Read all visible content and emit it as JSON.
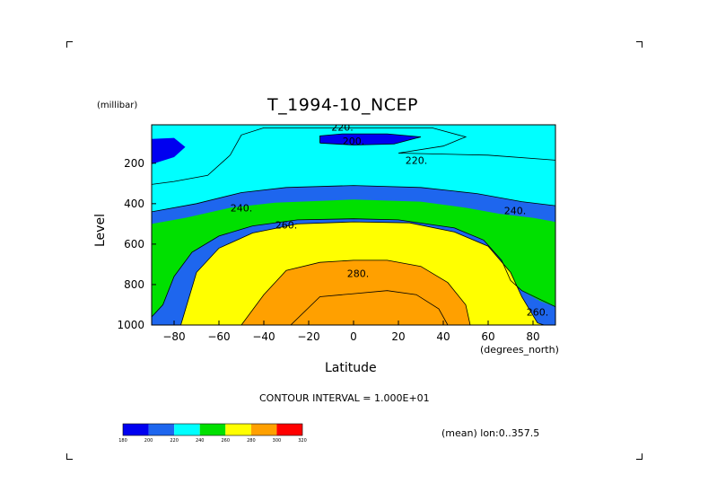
{
  "chart_data": {
    "type": "heatmap",
    "subtype": "filled-contour",
    "title": "T_1994-10_NCEP",
    "xlabel": "Latitude",
    "ylabel": "Level",
    "x_unit": "(degrees_north)",
    "y_unit": "(millibar)",
    "xlim": [
      -90,
      90
    ],
    "ylim": [
      1000,
      10
    ],
    "y_inverted": true,
    "x_ticks": [
      -80,
      -60,
      -40,
      -20,
      0,
      20,
      40,
      60,
      80
    ],
    "y_ticks": [
      200,
      400,
      600,
      800,
      1000
    ],
    "contour_interval_text": "CONTOUR INTERVAL = 1.000E+01",
    "mean_note": "(mean) lon:0..357.5",
    "levels": [
      180,
      200,
      220,
      240,
      260,
      280,
      300,
      320
    ],
    "level_colors": [
      "#0000f0",
      "#1e66ee",
      "#00ffff",
      "#00e000",
      "#ffff00",
      "#ffa000",
      "#ff0000"
    ],
    "contour_labels": [
      {
        "text": "220.",
        "lat": -5,
        "level": 20
      },
      {
        "text": "200.",
        "lat": 0,
        "level": 90
      },
      {
        "text": "220.",
        "lat": 28,
        "level": 185
      },
      {
        "text": "240.",
        "lat": -50,
        "level": 420
      },
      {
        "text": "260.",
        "lat": -30,
        "level": 505
      },
      {
        "text": "280.",
        "lat": 2,
        "level": 745
      },
      {
        "text": "240.",
        "lat": 72,
        "level": 435
      },
      {
        "text": "260.",
        "lat": 82,
        "level": 935
      }
    ],
    "regions": [
      {
        "value": 190,
        "points": [
          [
            -90,
            80
          ],
          [
            -80,
            75
          ],
          [
            -75,
            120
          ],
          [
            -80,
            170
          ],
          [
            -90,
            205
          ]
        ]
      },
      {
        "value": 190,
        "points": [
          [
            -15,
            65
          ],
          [
            -5,
            55
          ],
          [
            15,
            55
          ],
          [
            30,
            70
          ],
          [
            18,
            105
          ],
          [
            0,
            110
          ],
          [
            -15,
            100
          ]
        ]
      },
      {
        "value": 210,
        "points": [
          [
            -90,
            10
          ],
          [
            -60,
            10
          ],
          [
            -50,
            60
          ],
          [
            -55,
            160
          ],
          [
            -65,
            260
          ],
          [
            -80,
            290
          ],
          [
            -90,
            300
          ]
        ]
      },
      {
        "value": 210,
        "points": [
          [
            -37,
            45
          ],
          [
            -20,
            20
          ],
          [
            35,
            20
          ],
          [
            48,
            60
          ],
          [
            40,
            110
          ],
          [
            15,
            125
          ],
          [
            -10,
            125
          ],
          [
            -35,
            110
          ]
        ]
      },
      {
        "value": 210,
        "points": [
          [
            20,
            150
          ],
          [
            60,
            160
          ],
          [
            80,
            175
          ],
          [
            90,
            180
          ],
          [
            90,
            10
          ],
          [
            85,
            10
          ],
          [
            80,
            50
          ],
          [
            70,
            70
          ],
          [
            55,
            80
          ],
          [
            42,
            115
          ],
          [
            28,
            145
          ]
        ]
      },
      {
        "value": 230,
        "points": [
          [
            -90,
            10
          ],
          [
            90,
            10
          ],
          [
            90,
            410
          ],
          [
            75,
            390
          ],
          [
            55,
            350
          ],
          [
            30,
            320
          ],
          [
            0,
            310
          ],
          [
            -30,
            320
          ],
          [
            -50,
            345
          ],
          [
            -70,
            400
          ],
          [
            -90,
            440
          ]
        ]
      },
      {
        "value": 250,
        "points": [
          [
            -90,
            500
          ],
          [
            -75,
            470
          ],
          [
            -55,
            420
          ],
          [
            -35,
            395
          ],
          [
            0,
            380
          ],
          [
            30,
            390
          ],
          [
            50,
            420
          ],
          [
            65,
            450
          ],
          [
            80,
            470
          ],
          [
            90,
            490
          ],
          [
            90,
            910
          ],
          [
            83,
            880
          ],
          [
            75,
            830
          ],
          [
            70,
            780
          ],
          [
            66,
            680
          ],
          [
            58,
            580
          ],
          [
            45,
            520
          ],
          [
            20,
            480
          ],
          [
            0,
            475
          ],
          [
            -25,
            480
          ],
          [
            -45,
            510
          ],
          [
            -60,
            560
          ],
          [
            -72,
            640
          ],
          [
            -80,
            760
          ],
          [
            -85,
            900
          ],
          [
            -90,
            960
          ]
        ]
      },
      {
        "value": 270,
        "points": [
          [
            -77,
            1000
          ],
          [
            -70,
            740
          ],
          [
            -60,
            620
          ],
          [
            -45,
            545
          ],
          [
            -25,
            500
          ],
          [
            0,
            490
          ],
          [
            25,
            495
          ],
          [
            45,
            540
          ],
          [
            60,
            610
          ],
          [
            70,
            740
          ],
          [
            75,
            860
          ],
          [
            82,
            990
          ],
          [
            85,
            1000
          ]
        ]
      },
      {
        "value": 290,
        "points": [
          [
            -50,
            1000
          ],
          [
            -40,
            850
          ],
          [
            -30,
            730
          ],
          [
            -15,
            690
          ],
          [
            0,
            680
          ],
          [
            15,
            680
          ],
          [
            30,
            710
          ],
          [
            42,
            790
          ],
          [
            50,
            900
          ],
          [
            52,
            1000
          ]
        ]
      }
    ],
    "contour_lines": [
      [
        [
          -90,
          305
        ],
        [
          -80,
          290
        ],
        [
          -65,
          260
        ],
        [
          -55,
          160
        ],
        [
          -50,
          60
        ],
        [
          -40,
          25
        ],
        [
          35,
          25
        ],
        [
          50,
          70
        ],
        [
          40,
          115
        ],
        [
          20,
          150
        ],
        [
          60,
          160
        ],
        [
          90,
          185
        ]
      ],
      [
        [
          -15,
          100
        ],
        [
          -15,
          65
        ],
        [
          -5,
          55
        ],
        [
          15,
          55
        ],
        [
          30,
          70
        ],
        [
          18,
          105
        ],
        [
          0,
          110
        ],
        [
          -15,
          100
        ]
      ],
      [
        [
          -90,
          440
        ],
        [
          -70,
          400
        ],
        [
          -50,
          345
        ],
        [
          -30,
          320
        ],
        [
          0,
          310
        ],
        [
          30,
          320
        ],
        [
          55,
          350
        ],
        [
          75,
          390
        ],
        [
          90,
          410
        ]
      ],
      [
        [
          -90,
          960
        ],
        [
          -85,
          900
        ],
        [
          -80,
          760
        ],
        [
          -72,
          640
        ],
        [
          -60,
          560
        ],
        [
          -45,
          510
        ],
        [
          -25,
          480
        ],
        [
          0,
          475
        ],
        [
          20,
          480
        ],
        [
          45,
          520
        ],
        [
          58,
          580
        ],
        [
          66,
          680
        ],
        [
          70,
          780
        ],
        [
          75,
          830
        ],
        [
          90,
          910
        ]
      ],
      [
        [
          -77,
          1000
        ],
        [
          -70,
          740
        ],
        [
          -60,
          620
        ],
        [
          -45,
          545
        ],
        [
          -25,
          500
        ],
        [
          0,
          490
        ],
        [
          25,
          495
        ],
        [
          45,
          540
        ],
        [
          60,
          610
        ],
        [
          70,
          740
        ],
        [
          75,
          860
        ],
        [
          82,
          990
        ],
        [
          85,
          1000
        ]
      ],
      [
        [
          -50,
          1000
        ],
        [
          -40,
          850
        ],
        [
          -30,
          730
        ],
        [
          -15,
          690
        ],
        [
          0,
          680
        ],
        [
          15,
          680
        ],
        [
          30,
          710
        ],
        [
          42,
          790
        ],
        [
          50,
          900
        ],
        [
          52,
          1000
        ]
      ],
      [
        [
          -28,
          1000
        ],
        [
          -15,
          860
        ],
        [
          0,
          845
        ],
        [
          15,
          830
        ],
        [
          28,
          850
        ],
        [
          38,
          920
        ],
        [
          42,
          1000
        ]
      ]
    ]
  }
}
